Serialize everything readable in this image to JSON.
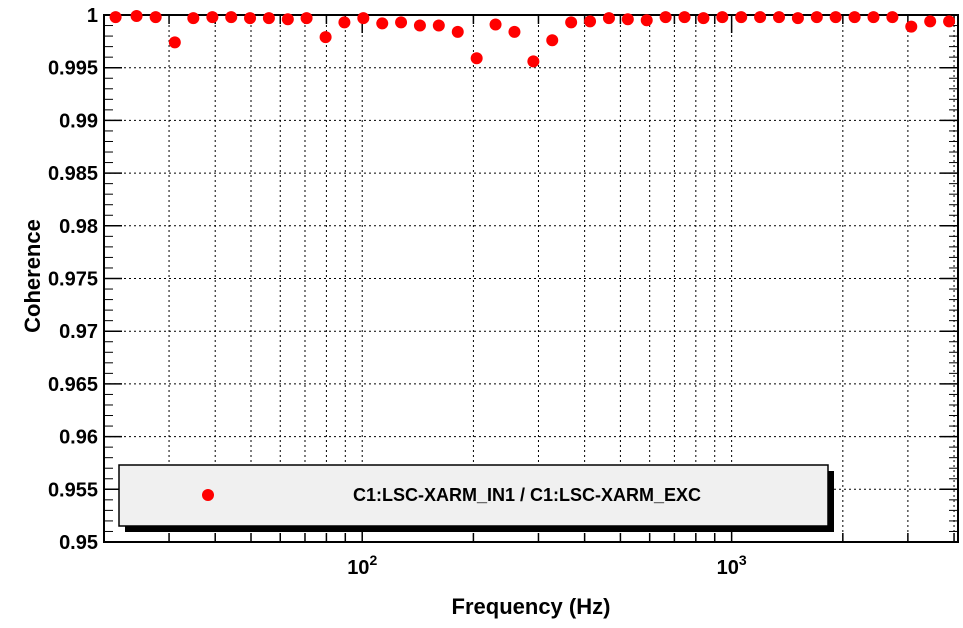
{
  "chart_data": {
    "type": "scatter",
    "xlabel": "Frequency (Hz)",
    "ylabel": "Coherence",
    "xscale": "log",
    "xlim": [
      20,
      4100
    ],
    "ylim": [
      0.95,
      1.0
    ],
    "grid": true,
    "legend_placement": "bottom-left",
    "y_ticks": [
      "0.95",
      "0.955",
      "0.96",
      "0.965",
      "0.97",
      "0.975",
      "0.98",
      "0.985",
      "0.99",
      "0.995",
      "1"
    ],
    "x_tick_labels": [
      {
        "value": 100,
        "base": "10",
        "exp": "2"
      },
      {
        "value": 1000,
        "base": "10",
        "exp": "3"
      }
    ],
    "series": [
      {
        "name": "C1:LSC-XARM_IN1 / C1:LSC-XARM_EXC",
        "color": "#ff0000",
        "x": [
          21.5,
          24.5,
          27.6,
          31.1,
          34.9,
          39.3,
          44.2,
          49.7,
          55.9,
          62.9,
          70.7,
          79.6,
          89.5,
          100.7,
          113.3,
          127.4,
          143.3,
          161.2,
          181.4,
          204.1,
          229.6,
          258.3,
          290.6,
          326.9,
          367.8,
          413.8,
          465.5,
          523.6,
          589.1,
          662.7,
          745.6,
          838.8,
          943.6,
          1061.5,
          1194.2,
          1343.5,
          1511.5,
          1700.4,
          1913.0,
          2152.1,
          2421.1,
          2723.8,
          3064.2,
          3447.3,
          3878.2
        ],
        "y": [
          0.9998,
          0.9999,
          0.9998,
          0.9974,
          0.9997,
          0.9998,
          0.9998,
          0.9997,
          0.9997,
          0.9996,
          0.9997,
          0.9979,
          0.9993,
          0.9997,
          0.9992,
          0.9993,
          0.999,
          0.999,
          0.9984,
          0.9959,
          0.9991,
          0.9984,
          0.9956,
          0.9976,
          0.9993,
          0.9994,
          0.9997,
          0.9996,
          0.9995,
          0.9998,
          0.9998,
          0.9997,
          0.9998,
          0.9998,
          0.9998,
          0.9998,
          0.9997,
          0.9998,
          0.9998,
          0.9998,
          0.9998,
          0.9998,
          0.9989,
          0.9994,
          0.9994
        ]
      }
    ]
  }
}
